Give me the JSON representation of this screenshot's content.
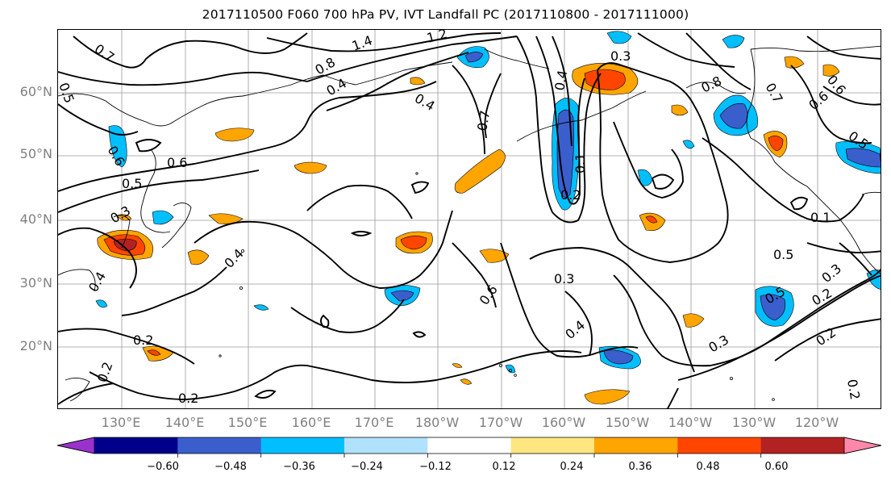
{
  "title": "2017110500 F060 700 hPa PV, IVT Landfall PC (2017110800 - 2017111000)",
  "lat_labels": [
    "60°N",
    "50°N",
    "40°N",
    "30°N",
    "20°N"
  ],
  "lon_labels": [
    "130°E",
    "140°E",
    "150°E",
    "160°E",
    "170°E",
    "180°W",
    "170°W",
    "160°W",
    "150°W",
    "140°W",
    "130°W",
    "120°W"
  ],
  "contour_labels": [
    "0.7",
    "1.4",
    "1.2",
    "0.8",
    "0.4",
    "0.4",
    "0.5",
    "0.6",
    "0.5",
    "0.3",
    "0.3",
    "0.4",
    "0.7",
    "0.2",
    "0.2",
    "0.4",
    "0.3",
    "0.6",
    "0.4",
    "0.2",
    "0.2",
    "0.6",
    "0.3",
    "0.8",
    "0.7",
    "0.6",
    "0.5",
    "0.1",
    "0.5",
    "0.5",
    "0.2",
    "0.3",
    "0.2",
    "0.4",
    "0.2",
    "0.1",
    "0.6"
  ],
  "colorbar": {
    "ticks": [
      "−0.60",
      "−0.48",
      "−0.36",
      "−0.24",
      "−0.12",
      "0.12",
      "0.24",
      "0.36",
      "0.48",
      "0.60"
    ],
    "colors": [
      "#9932cc",
      "#00008b",
      "#3a5fcd",
      "#00bfff",
      "#b0e2ff",
      "#ffffff",
      "#ffe680",
      "#ffa500",
      "#ff4500",
      "#b22222",
      "#ff88aa"
    ]
  }
}
